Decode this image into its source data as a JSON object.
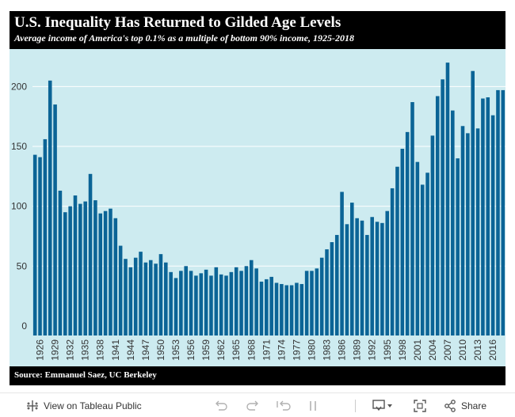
{
  "header": {
    "title": "U.S. Inequality Has Returned to Gilded Age Levels",
    "subtitle": "Average income of America's top 0.1% as a multiple of bottom 90% income, 1925-2018"
  },
  "footer": {
    "source": "Source:  Emmanuel Saez, UC Berkeley"
  },
  "toolbar": {
    "view_label": "View on Tableau Public",
    "share_label": "Share",
    "icons": [
      "tableau-logo-icon",
      "undo-icon",
      "redo-icon",
      "revert-icon",
      "pause-icon",
      "download-icon",
      "fullscreen-icon",
      "share-icon"
    ]
  },
  "colors": {
    "bar": "#0b6496",
    "plot_background": "#cdebf0",
    "gridline": "#ffffff",
    "header_background": "#000000"
  },
  "chart_data": {
    "type": "bar",
    "title": "U.S. Inequality Has Returned to Gilded Age Levels",
    "subtitle": "Average income of America's top 0.1% as a multiple of bottom 90% income, 1925-2018",
    "x": [
      1925,
      1926,
      1927,
      1928,
      1929,
      1930,
      1931,
      1932,
      1933,
      1934,
      1935,
      1936,
      1937,
      1938,
      1939,
      1940,
      1941,
      1942,
      1943,
      1944,
      1945,
      1946,
      1947,
      1948,
      1949,
      1950,
      1951,
      1952,
      1953,
      1954,
      1955,
      1956,
      1957,
      1958,
      1959,
      1960,
      1961,
      1962,
      1963,
      1964,
      1965,
      1966,
      1967,
      1968,
      1969,
      1970,
      1971,
      1972,
      1973,
      1974,
      1975,
      1976,
      1977,
      1978,
      1979,
      1980,
      1981,
      1982,
      1983,
      1984,
      1985,
      1986,
      1987,
      1988,
      1989,
      1990,
      1991,
      1992,
      1993,
      1994,
      1995,
      1996,
      1997,
      1998,
      1999,
      2000,
      2001,
      2002,
      2003,
      2004,
      2005,
      2006,
      2007,
      2008,
      2009,
      2010,
      2011,
      2012,
      2013,
      2014,
      2015,
      2016,
      2017,
      2018
    ],
    "values": [
      143,
      141,
      156,
      205,
      185,
      113,
      95,
      100,
      109,
      102,
      104,
      127,
      105,
      94,
      96,
      98,
      90,
      67,
      56,
      49,
      57,
      62,
      53,
      55,
      52,
      60,
      53,
      45,
      40,
      46,
      50,
      46,
      42,
      44,
      47,
      42,
      49,
      43,
      42,
      45,
      49,
      46,
      50,
      55,
      48,
      37,
      39,
      41,
      36,
      35,
      34,
      34,
      36,
      35,
      46,
      46,
      48,
      57,
      64,
      70,
      76,
      112,
      85,
      103,
      90,
      88,
      76,
      91,
      87,
      86,
      96,
      115,
      133,
      148,
      162,
      187,
      137,
      118,
      128,
      159,
      192,
      206,
      220,
      180,
      140,
      167,
      161,
      213,
      165,
      190,
      191,
      176,
      197,
      197
    ],
    "xtick_labels": [
      "1926",
      "1929",
      "1932",
      "1935",
      "1938",
      "1941",
      "1944",
      "1947",
      "1950",
      "1953",
      "1956",
      "1959",
      "1962",
      "1965",
      "1968",
      "1971",
      "1974",
      "1977",
      "1980",
      "1983",
      "1986",
      "1989",
      "1992",
      "1995",
      "1998",
      "2001",
      "2004",
      "2007",
      "2010",
      "2013",
      "2016"
    ],
    "ytick_labels": [
      "0",
      "50",
      "100",
      "150",
      "200"
    ],
    "yticks": [
      0,
      50,
      100,
      150,
      200
    ],
    "ylim": [
      -8,
      230
    ],
    "xlabel": "",
    "ylabel": "",
    "grid": true,
    "legend": "none"
  }
}
